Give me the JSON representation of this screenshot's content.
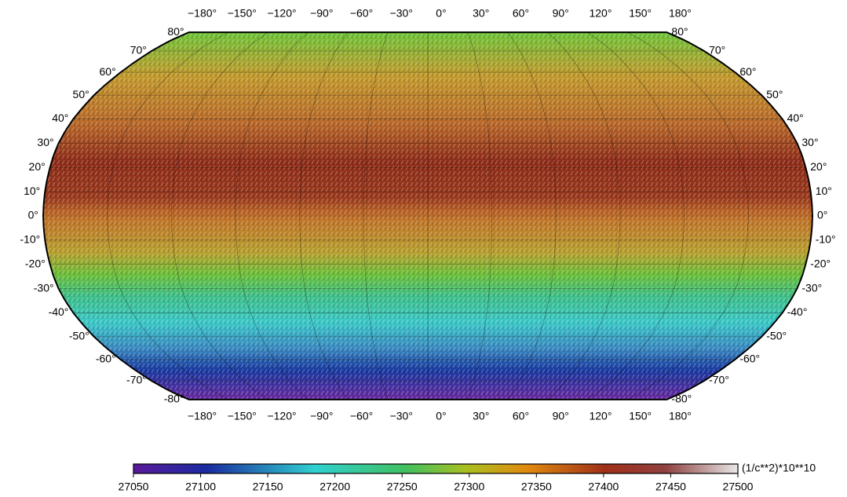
{
  "map": {
    "top_lon_labels": [
      "−180°",
      "−150°",
      "−120°",
      "−90°",
      "−60°",
      "−30°",
      "0°",
      "30°",
      "60°",
      "90°",
      "120°",
      "150°",
      "180°"
    ],
    "bottom_lon_labels": [
      "−180°",
      "−150°",
      "−120°",
      "−90°",
      "−60°",
      "−30°",
      "0°",
      "30°",
      "60°",
      "90°",
      "120°",
      "150°",
      "180°"
    ],
    "left_lat_labels": [
      "80°",
      "70°",
      "60°",
      "50°",
      "40°",
      "30°",
      "20°",
      "10°",
      "0°",
      "-10°",
      "-20°",
      "-30°",
      "-40°",
      "-50°",
      "-60°",
      "-70°",
      "-80°"
    ],
    "right_lat_labels": [
      "80°",
      "70°",
      "60°",
      "50°",
      "40°",
      "30°",
      "20°",
      "10°",
      "0°",
      "-10°",
      "-20°",
      "-30°",
      "-40°",
      "-50°",
      "-60°",
      "-70°",
      "-80°"
    ]
  },
  "colorbar": {
    "ticks": [
      27050,
      27100,
      27150,
      27200,
      27250,
      27300,
      27350,
      27400,
      27450,
      27500
    ],
    "label": "(1/c**2)*10**10"
  }
}
